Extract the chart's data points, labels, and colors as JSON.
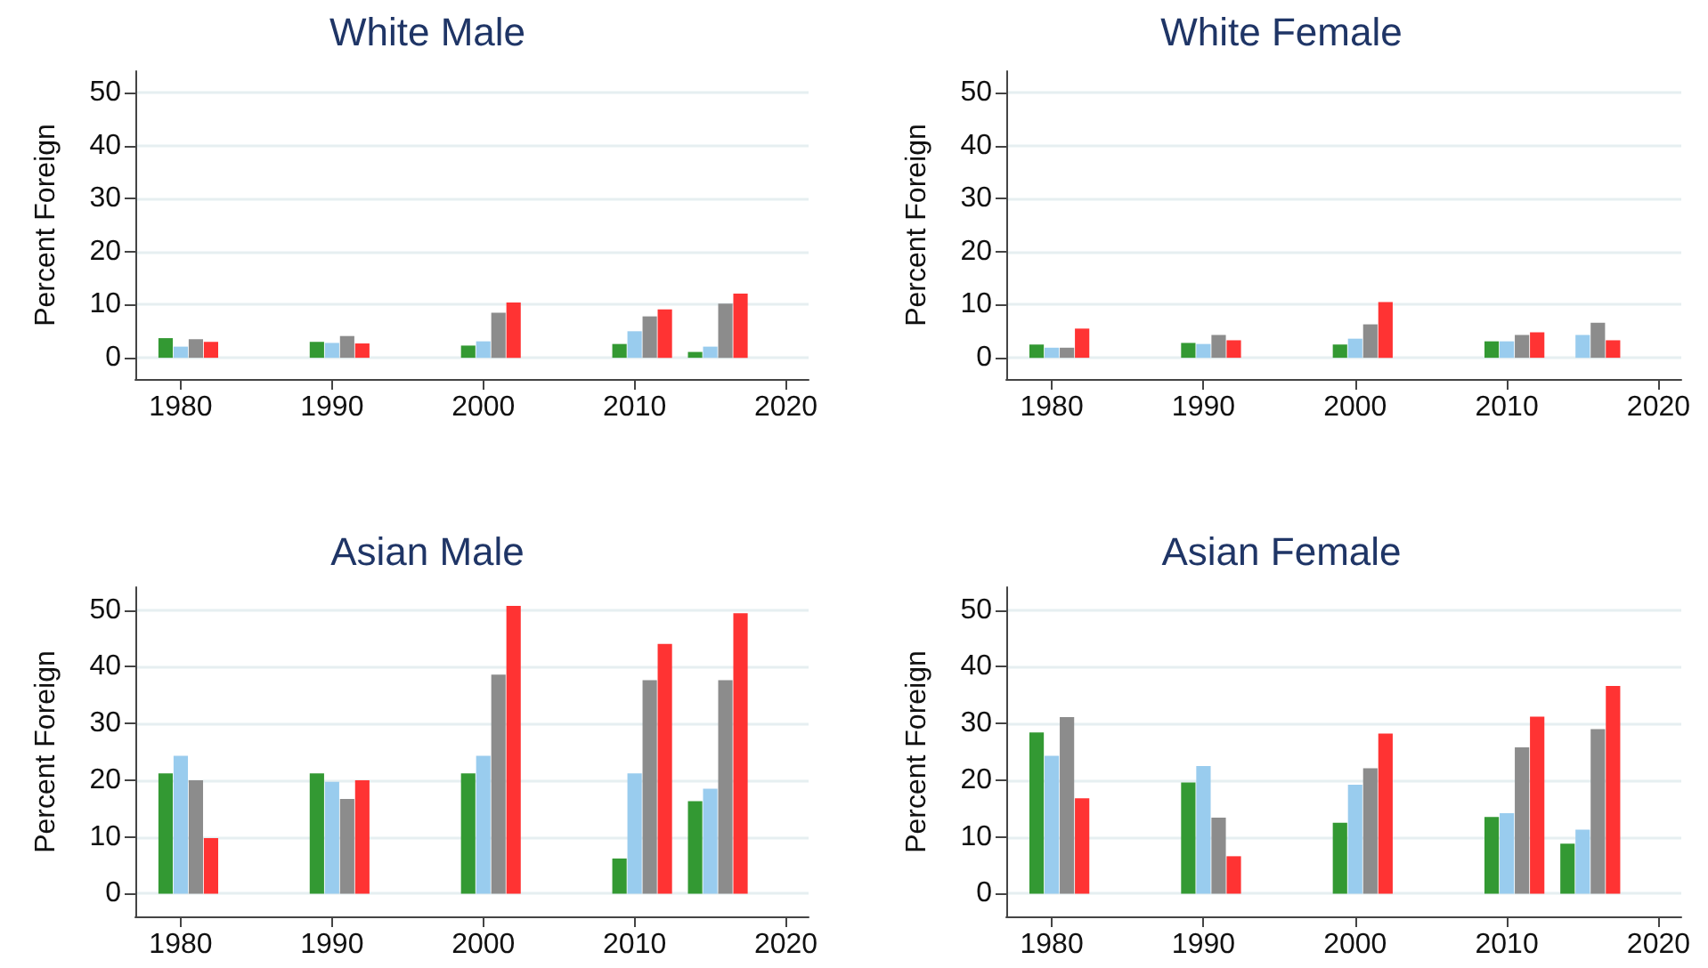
{
  "chart_data": [
    {
      "type": "bar",
      "title": "White Male",
      "ylabel": "Percent Foreign",
      "xlim": [
        1977,
        2021.5
      ],
      "xticks": [
        1980,
        1990,
        2000,
        2010,
        2020
      ],
      "ylim": [
        -4,
        54
      ],
      "yticks": [
        0,
        10,
        20,
        30,
        40,
        50
      ],
      "grid": "y",
      "series": [
        {
          "color": "#339933",
          "x": [
            1979,
            1989,
            1999,
            2009,
            2014
          ],
          "values": [
            3.7,
            3.0,
            2.3,
            2.6,
            1.1
          ]
        },
        {
          "color": "#99ccee",
          "x": [
            1980,
            1990,
            2000,
            2010,
            2015
          ],
          "values": [
            2.1,
            2.8,
            3.1,
            5.0,
            2.1
          ]
        },
        {
          "color": "#8c8c8c",
          "x": [
            1981,
            1991,
            2001,
            2011,
            2016
          ],
          "values": [
            3.5,
            4.1,
            8.5,
            7.8,
            10.2
          ]
        },
        {
          "color": "#ff3333",
          "x": [
            1982,
            1992,
            2002,
            2012,
            2017
          ],
          "values": [
            3.0,
            2.7,
            10.4,
            9.1,
            12.1
          ]
        }
      ]
    },
    {
      "type": "bar",
      "title": "White Female",
      "ylabel": "Percent Foreign",
      "xlim": [
        1977,
        2021.5
      ],
      "xticks": [
        1980,
        1990,
        2000,
        2010,
        2020
      ],
      "ylim": [
        -4,
        54
      ],
      "yticks": [
        0,
        10,
        20,
        30,
        40,
        50
      ],
      "grid": "y",
      "series": [
        {
          "color": "#339933",
          "x": [
            1979,
            1989,
            1999,
            2009
          ],
          "values": [
            2.5,
            2.8,
            2.5,
            3.1
          ]
        },
        {
          "color": "#99ccee",
          "x": [
            1980,
            1990,
            2000,
            2010,
            2015
          ],
          "values": [
            1.9,
            2.6,
            3.6,
            3.1,
            4.3
          ]
        },
        {
          "color": "#8c8c8c",
          "x": [
            1981,
            1991,
            2001,
            2011,
            2016
          ],
          "values": [
            1.9,
            4.3,
            6.3,
            4.3,
            6.6
          ]
        },
        {
          "color": "#ff3333",
          "x": [
            1982,
            1992,
            2002,
            2012,
            2017
          ],
          "values": [
            5.5,
            3.3,
            10.5,
            4.8,
            3.3
          ]
        }
      ]
    },
    {
      "type": "bar",
      "title": "Asian Male",
      "ylabel": "Percent Foreign",
      "xlim": [
        1977,
        2021.5
      ],
      "xticks": [
        1980,
        1990,
        2000,
        2010,
        2020
      ],
      "ylim": [
        -4,
        54
      ],
      "yticks": [
        0,
        10,
        20,
        30,
        40,
        50
      ],
      "grid": "y",
      "series": [
        {
          "color": "#339933",
          "x": [
            1979,
            1989,
            1999,
            2009,
            2014
          ],
          "values": [
            21.2,
            21.2,
            21.2,
            6.2,
            16.3
          ]
        },
        {
          "color": "#99ccee",
          "x": [
            1980,
            1990,
            2000,
            2010,
            2015
          ],
          "values": [
            24.3,
            19.7,
            24.3,
            21.2,
            18.5
          ]
        },
        {
          "color": "#8c8c8c",
          "x": [
            1981,
            1991,
            2001,
            2011,
            2016
          ],
          "values": [
            20.0,
            16.7,
            38.6,
            37.6,
            37.6
          ]
        },
        {
          "color": "#ff3333",
          "x": [
            1982,
            1992,
            2002,
            2012,
            2017
          ],
          "values": [
            9.8,
            20.0,
            50.7,
            44.0,
            49.4
          ]
        }
      ]
    },
    {
      "type": "bar",
      "title": "Asian Female",
      "ylabel": "Percent Foreign",
      "xlim": [
        1977,
        2021.5
      ],
      "xticks": [
        1980,
        1990,
        2000,
        2010,
        2020
      ],
      "ylim": [
        -4,
        54
      ],
      "yticks": [
        0,
        10,
        20,
        30,
        40,
        50
      ],
      "grid": "y",
      "series": [
        {
          "color": "#339933",
          "x": [
            1979,
            1989,
            1999,
            2009,
            2014
          ],
          "values": [
            28.4,
            19.6,
            12.5,
            13.5,
            8.8
          ]
        },
        {
          "color": "#99ccee",
          "x": [
            1980,
            1990,
            2000,
            2010,
            2015
          ],
          "values": [
            24.3,
            22.5,
            19.2,
            14.2,
            11.3
          ]
        },
        {
          "color": "#8c8c8c",
          "x": [
            1981,
            1991,
            2001,
            2011,
            2016
          ],
          "values": [
            31.1,
            13.4,
            22.1,
            25.8,
            29.0
          ]
        },
        {
          "color": "#ff3333",
          "x": [
            1982,
            1992,
            2002,
            2012,
            2017
          ],
          "values": [
            16.8,
            6.6,
            28.2,
            31.2,
            36.6
          ]
        }
      ]
    }
  ]
}
